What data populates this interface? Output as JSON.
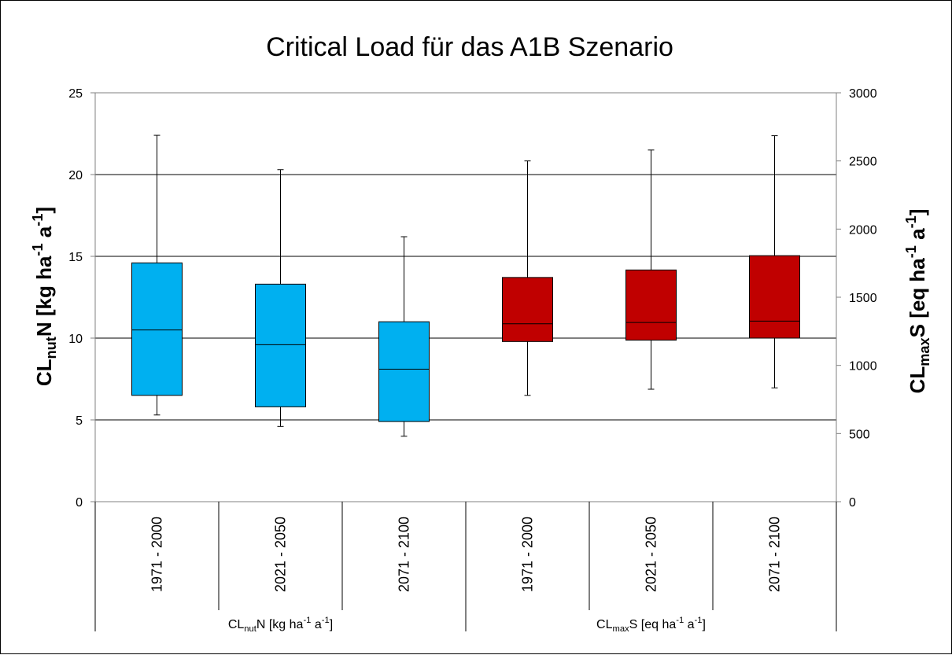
{
  "chart_data": {
    "type": "boxplot",
    "title": "Critical Load für das A1B Szenario",
    "categories": [
      "1971 - 2000",
      "2021 - 2050",
      "2071 - 2100",
      "1971 - 2000",
      "2021 - 2050",
      "2071 - 2100"
    ],
    "groups": [
      {
        "label_main": "CL",
        "label_sub": "nut",
        "label_rest": "N [kg ha",
        "label_sup1": "-1",
        "label_mid": " a",
        "label_sup2": "-1",
        "label_end": "]",
        "category_indices": [
          0,
          1,
          2
        ]
      },
      {
        "label_main": "CL",
        "label_sub": "max",
        "label_rest": "S [eq ha",
        "label_sup1": "-1",
        "label_mid": " a",
        "label_sup2": "-1",
        "label_end": "]",
        "category_indices": [
          3,
          4,
          5
        ]
      }
    ],
    "y_left": {
      "label_main": "CL",
      "label_sub": "nut",
      "label_rest": "N [kg ha",
      "label_sup1": "-1",
      "label_mid": " a",
      "label_sup2": "-1",
      "label_end": "]",
      "range": [
        0,
        25
      ],
      "ticks": [
        0,
        5,
        10,
        15,
        20,
        25
      ]
    },
    "y_right": {
      "label_main": "CL",
      "label_sub": "max",
      "label_rest": "S [eq ha",
      "label_sup1": "-1",
      "label_mid": " a",
      "label_sup2": "-1",
      "label_end": "]",
      "range": [
        0,
        3000
      ],
      "ticks": [
        0,
        500,
        1000,
        1500,
        2000,
        2500,
        3000
      ]
    },
    "series": [
      {
        "name": "CLnutN",
        "axis": "left",
        "color": "#00b0f0",
        "boxes": [
          {
            "category": "1971 - 2000",
            "min": 5.3,
            "q1": 6.5,
            "median": 10.5,
            "q3": 14.6,
            "max": 22.4
          },
          {
            "category": "2021 - 2050",
            "min": 4.6,
            "q1": 5.8,
            "median": 9.6,
            "q3": 13.3,
            "max": 20.3
          },
          {
            "category": "2071 - 2100",
            "min": 4.0,
            "q1": 4.9,
            "median": 8.1,
            "q3": 11.0,
            "max": 16.2
          }
        ]
      },
      {
        "name": "CLmaxS",
        "axis": "right",
        "color": "#c00000",
        "boxes": [
          {
            "category": "1971 - 2000",
            "min": 780,
            "q1": 1175,
            "median": 1305,
            "q3": 1645,
            "max": 2500
          },
          {
            "category": "2021 - 2050",
            "min": 825,
            "q1": 1185,
            "median": 1315,
            "q3": 1700,
            "max": 2580
          },
          {
            "category": "2071 - 2100",
            "min": 835,
            "q1": 1200,
            "median": 1325,
            "q3": 1805,
            "max": 2685
          }
        ]
      }
    ],
    "grid": true,
    "legend": "none"
  }
}
